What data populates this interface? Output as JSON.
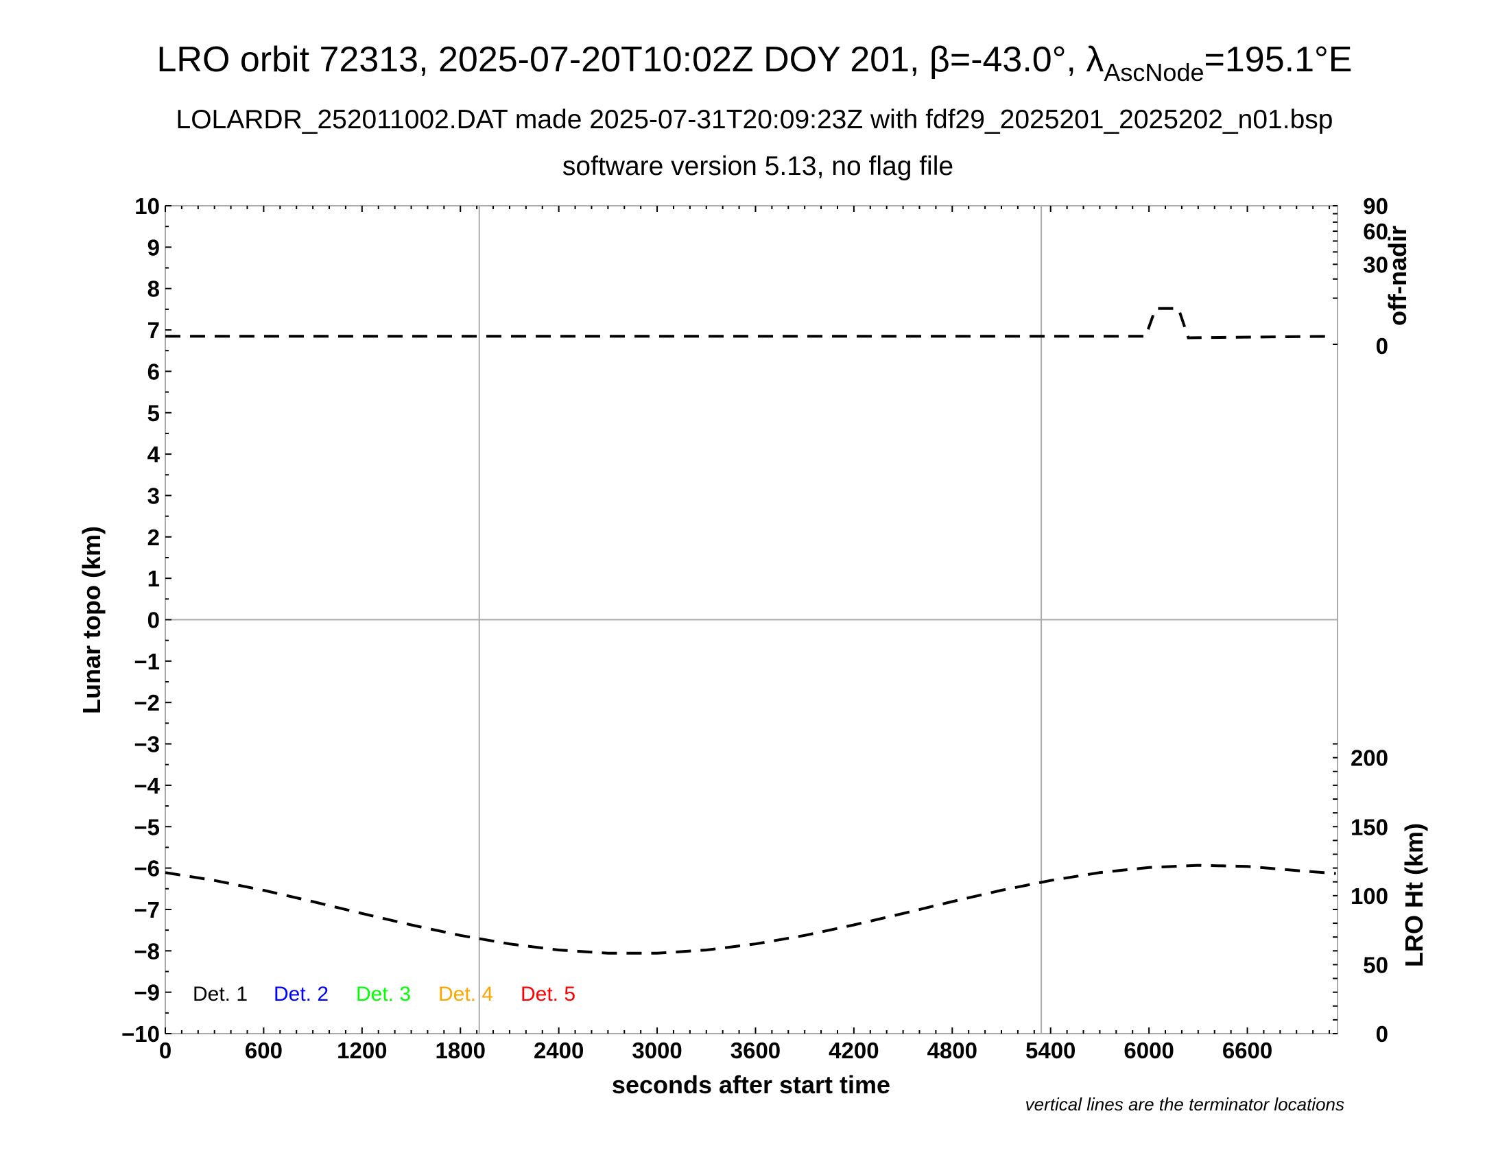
{
  "header": {
    "title_main": "LRO orbit 72313, 2025-07-20T10:02Z DOY 201, β=-43.0°, λ",
    "title_sub": "AscNode",
    "title_end": "=195.1°E",
    "subtitle": "LOLARDR_252011002.DAT made 2025-07-31T20:09:23Z with fdf29_2025201_2025202_n01.bsp",
    "subtitle2": "software version 5.13, no flag file"
  },
  "footnote": "vertical lines are the terminator locations",
  "chart_data": {
    "type": "line",
    "xlabel": "seconds after start time",
    "ylabel": "Lunar topo (km)",
    "xlim": [
      0,
      7150
    ],
    "ylim": [
      -10,
      10
    ],
    "x_ticks": [
      0,
      600,
      1200,
      1800,
      2400,
      3000,
      3600,
      4200,
      4800,
      5400,
      6000,
      6600
    ],
    "x_tick_labels": [
      "0",
      "600",
      "1200",
      "1800",
      "2400",
      "3000",
      "3600",
      "4200",
      "4800",
      "5400",
      "6000",
      "6600"
    ],
    "y_ticks": [
      10,
      9,
      8,
      7,
      6,
      5,
      4,
      3,
      2,
      1,
      0,
      -1,
      -2,
      -3,
      -4,
      -5,
      -6,
      -7,
      -8,
      -9,
      -10
    ],
    "y_tick_labels": [
      "10",
      "9",
      "8",
      "7",
      "6",
      "5",
      "4",
      "3",
      "2",
      "1",
      "0",
      "−1",
      "−2",
      "−3",
      "−4",
      "−5",
      "−6",
      "−7",
      "−8",
      "−9",
      "−10"
    ],
    "terminators": [
      1915,
      5343
    ],
    "grid": "zero line and terminator lines only",
    "right_axis_offnadir": {
      "label": "off-nadir",
      "scale": "sqrt",
      "range": [
        0,
        90
      ],
      "ticks": [
        0,
        30,
        60,
        90
      ],
      "tick_labels": [
        "0",
        "30",
        "60",
        "90"
      ]
    },
    "right_axis_height": {
      "label": "LRO Ht (km)",
      "range": [
        0,
        600
      ],
      "ticks": [
        0,
        50,
        100,
        150,
        200
      ],
      "tick_labels": [
        "0",
        "50",
        "100",
        "150",
        "200"
      ]
    },
    "legend": [
      {
        "label": "Det. 1",
        "color": "#000000"
      },
      {
        "label": "Det. 2",
        "color": "#0000ff"
      },
      {
        "label": "Det. 3",
        "color": "#00ff00"
      },
      {
        "label": "Det. 4",
        "color": "#ffa500"
      },
      {
        "label": "Det. 5",
        "color": "#ff0000"
      }
    ],
    "legend_placement": "bottom-left",
    "series": [
      {
        "name": "off-nadir angle (deg)",
        "axis": "offnadir",
        "style": "dashed",
        "color": "#000000",
        "x": [
          0,
          5980,
          6040,
          6180,
          6240,
          7130
        ],
        "y": [
          0.3,
          0.3,
          6,
          6,
          0.2,
          0.3
        ]
      },
      {
        "name": "LRO height (km)",
        "axis": "height",
        "style": "dashed",
        "color": "#000000",
        "x": [
          0,
          300,
          600,
          900,
          1200,
          1500,
          1800,
          2100,
          2400,
          2700,
          3000,
          3300,
          3600,
          3900,
          4200,
          4500,
          4800,
          5100,
          5400,
          5700,
          6000,
          6300,
          6600,
          6900,
          7140
        ],
        "y": [
          116.7,
          111.0,
          103.9,
          95.7,
          87.1,
          78.8,
          71.2,
          65.0,
          60.6,
          58.3,
          58.3,
          60.6,
          65.0,
          71.2,
          78.8,
          87.1,
          95.7,
          103.9,
          111.0,
          116.7,
          120.4,
          122.0,
          121.2,
          118.2,
          116.0
        ]
      }
    ]
  }
}
